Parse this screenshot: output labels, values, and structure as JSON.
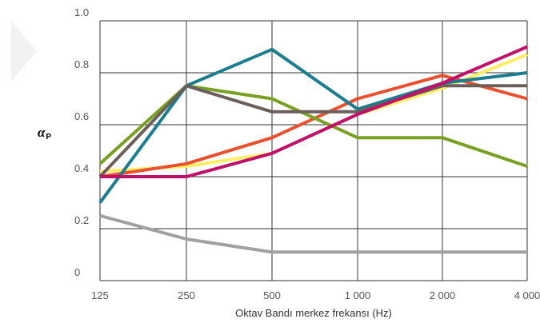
{
  "chart_data": {
    "type": "line",
    "title": "",
    "xlabel": "Oktav Bandı merkez frekansı (Hz)",
    "ylabel": "α",
    "ylabel_subscript": "P",
    "x_tick_labels": [
      "125",
      "250",
      "500",
      "1 000",
      "2 000",
      "4 000"
    ],
    "y_tick_labels": [
      "0",
      "0.2",
      "0.4",
      "0.6",
      "0.8",
      "1.0"
    ],
    "y_tick_values": [
      0,
      0.2,
      0.4,
      0.6,
      0.8,
      1.0
    ],
    "ylim": [
      0,
      1.0
    ],
    "grid": true,
    "legend": "none",
    "series": [
      {
        "color": "#a0a0a0",
        "values": [
          0.25,
          0.16,
          0.11,
          0.11,
          0.11,
          0.11
        ]
      },
      {
        "color": "#ffee66",
        "values": [
          0.42,
          0.44,
          0.49,
          0.64,
          0.74,
          0.87
        ]
      },
      {
        "color": "#e8502e",
        "values": [
          0.4,
          0.45,
          0.55,
          0.7,
          0.79,
          0.7
        ]
      },
      {
        "color": "#7aa023",
        "values": [
          0.45,
          0.75,
          0.7,
          0.55,
          0.55,
          0.44
        ]
      },
      {
        "color": "#1b7d8e",
        "values": [
          0.3,
          0.75,
          0.89,
          0.66,
          0.76,
          0.8
        ]
      },
      {
        "color": "#6b5f5b",
        "values": [
          0.4,
          0.75,
          0.65,
          0.65,
          0.75,
          0.75
        ]
      },
      {
        "color": "#c0106a",
        "values": [
          0.4,
          0.4,
          0.49,
          0.64,
          0.76,
          0.9
        ]
      }
    ],
    "decoration_color": "#f2f2f2"
  }
}
